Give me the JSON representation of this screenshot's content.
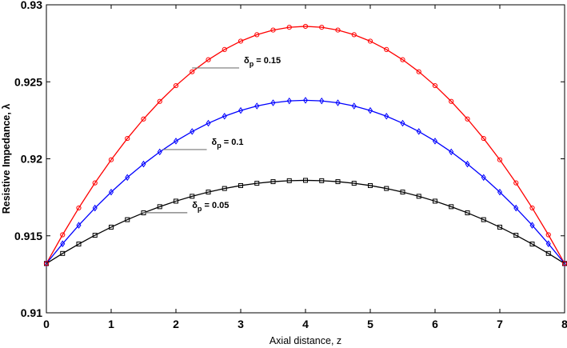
{
  "chart_data": {
    "type": "line",
    "title": "",
    "xlabel": "Axial distance, z",
    "ylabel": "Resistive Impedance, λ",
    "xlim": [
      0,
      8
    ],
    "ylim": [
      0.91,
      0.93
    ],
    "xticks": [
      "0",
      "1",
      "2",
      "3",
      "4",
      "5",
      "6",
      "7",
      "8"
    ],
    "yticks": [
      "0.91",
      "0.915",
      "0.92",
      "0.925",
      "0.93"
    ],
    "grid": false,
    "legend": "none",
    "series": [
      {
        "color": "#ff0000",
        "marker": "circle",
        "z0": 0.9132,
        "zmax": 0.9286,
        "points": 33,
        "annotation": {
          "symbol": "δ",
          "sub": "p",
          "value": " = 0.15",
          "x": 2.25,
          "y": 0.9259,
          "label_x": 3.05,
          "label_y": 0.9262
        }
      },
      {
        "color": "#0000ff",
        "marker": "diamond",
        "z0": 0.9132,
        "zmax": 0.9238,
        "points": 33,
        "annotation": {
          "symbol": "δ",
          "sub": "p",
          "value": " = 0.1",
          "x": 1.8,
          "y": 0.9206,
          "label_x": 2.55,
          "label_y": 0.9209
        }
      },
      {
        "color": "#000000",
        "marker": "square",
        "z0": 0.9132,
        "zmax": 0.9186,
        "points": 33,
        "annotation": {
          "symbol": "δ",
          "sub": "p",
          "value": " = 0.05",
          "x": 1.5,
          "y": 0.9165,
          "label_x": 2.25,
          "label_y": 0.9168
        }
      }
    ]
  }
}
